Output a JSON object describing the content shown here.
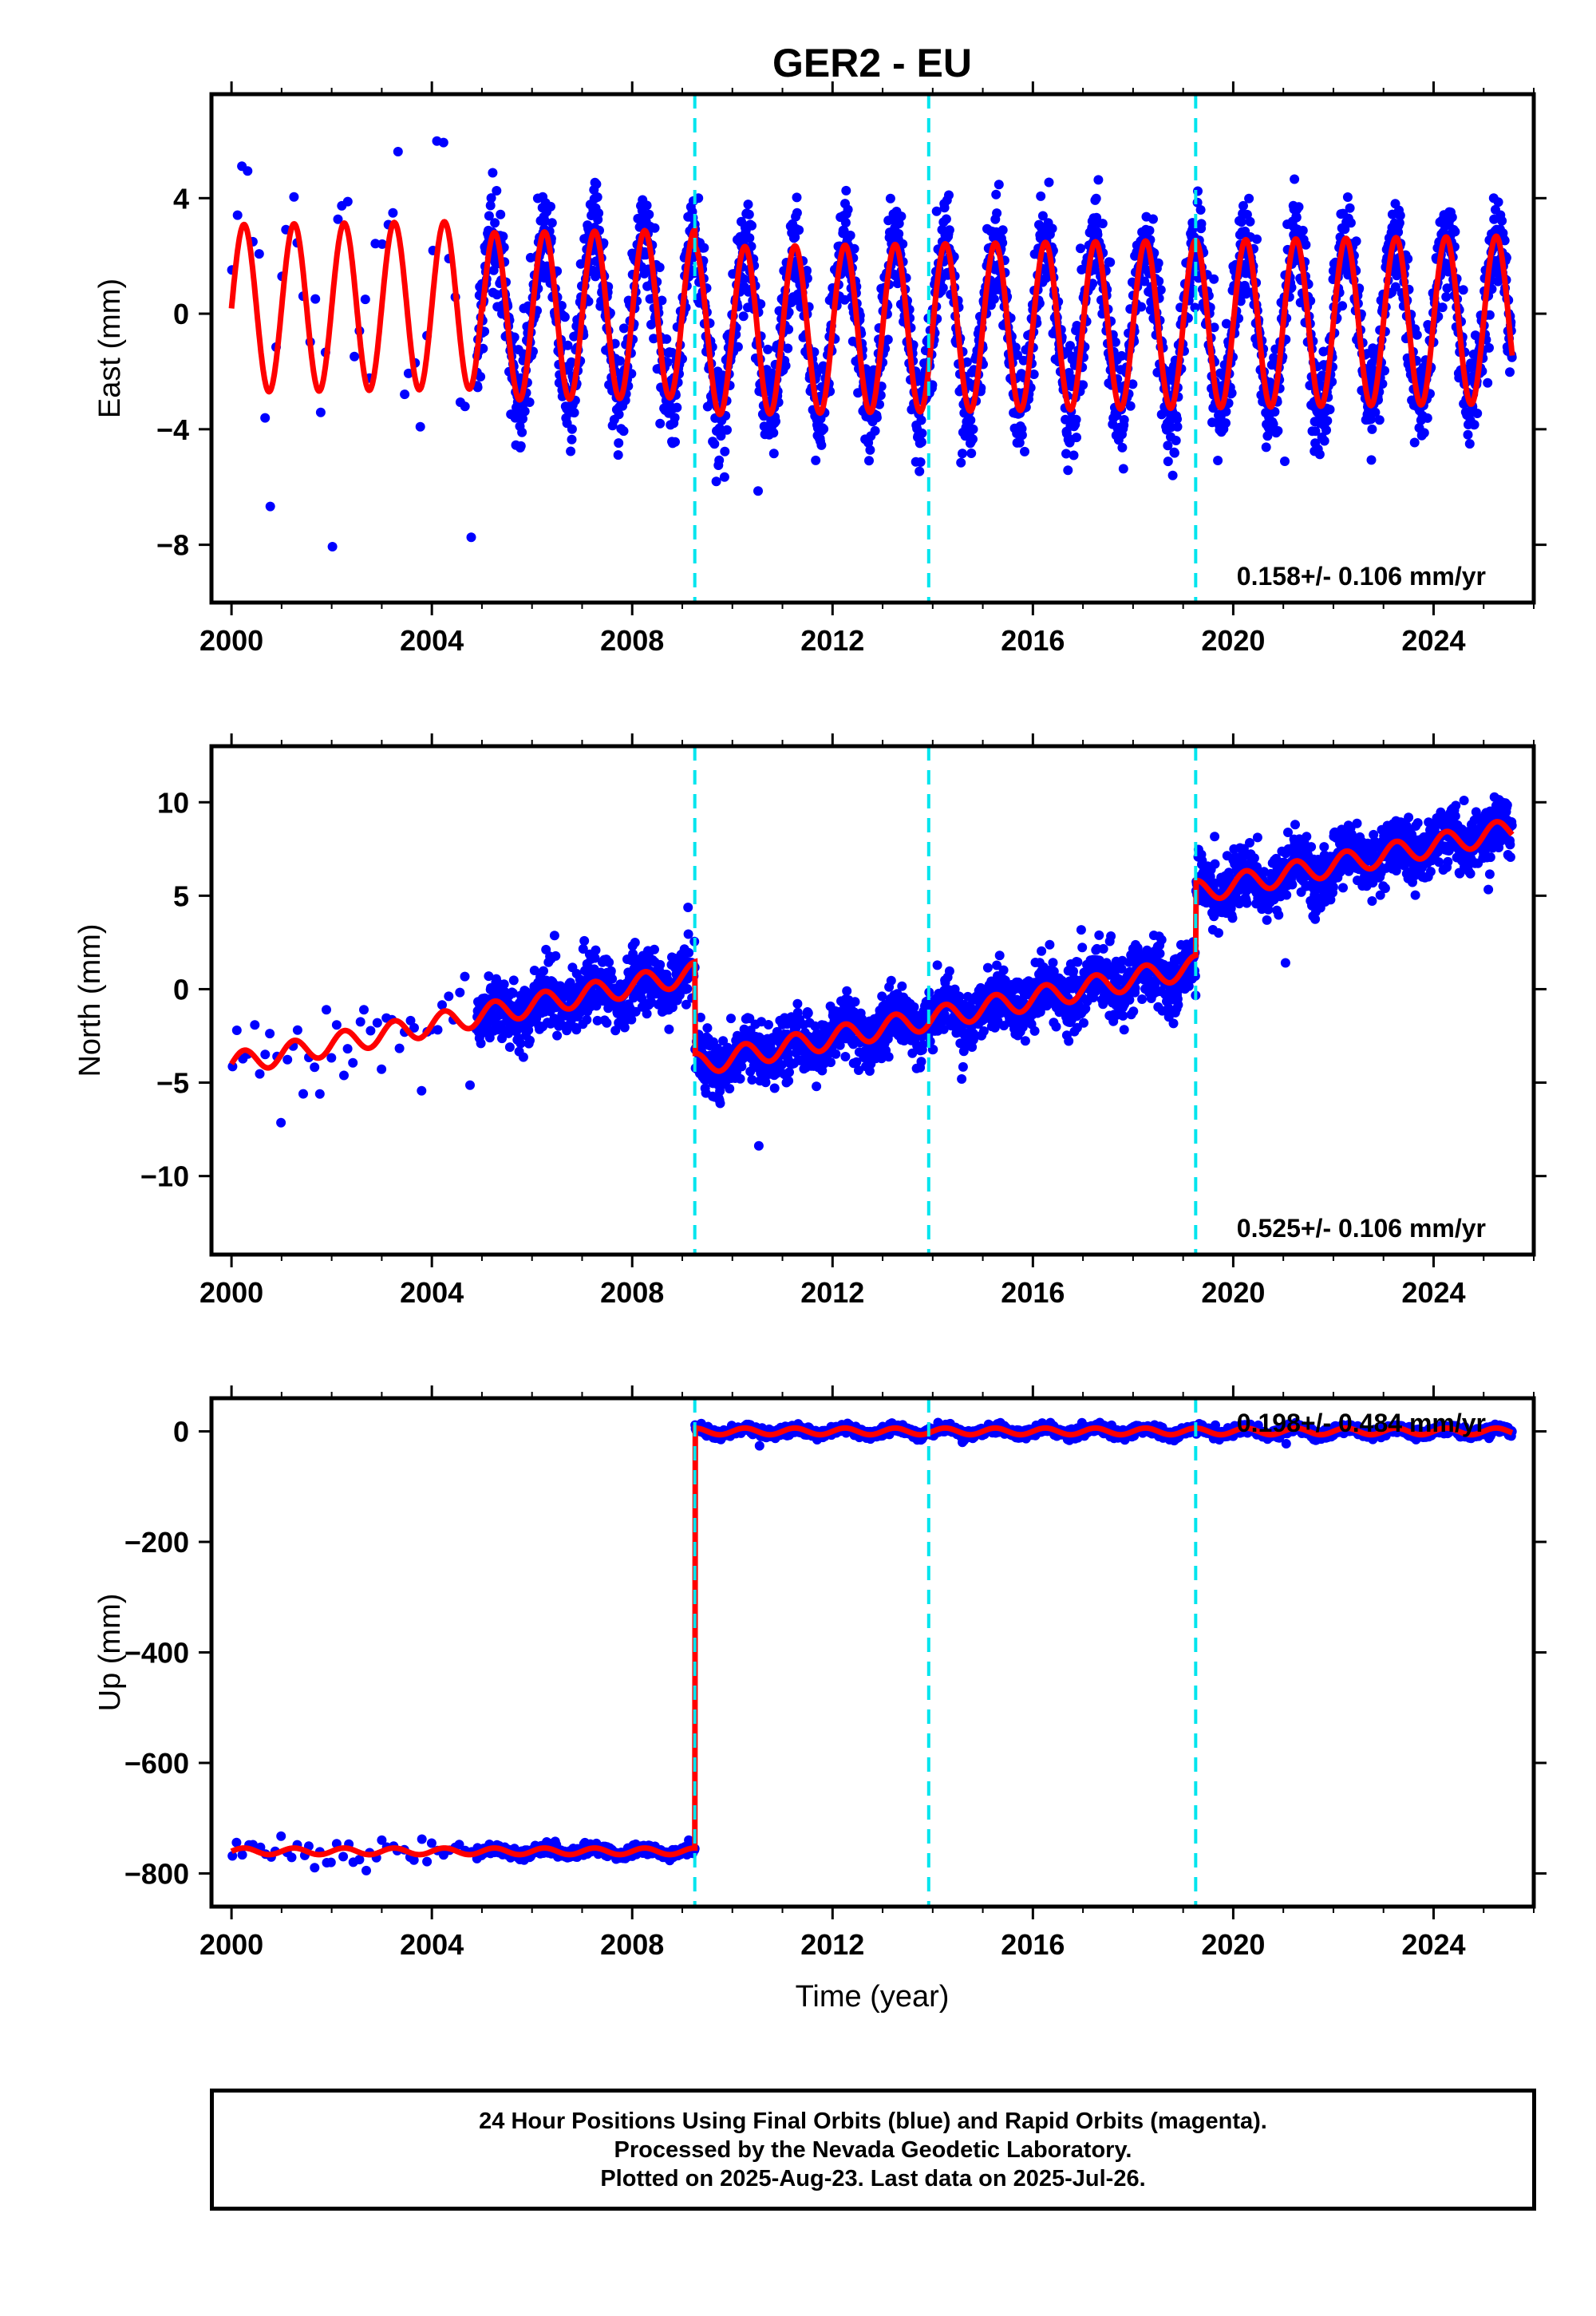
{
  "title": "GER2 - EU",
  "xlabel": "Time (year)",
  "colors": {
    "data": "#0000ff",
    "model": "#ff0000",
    "offset": "#00e5ee",
    "frame": "#000000"
  },
  "footer": {
    "line1": "24 Hour Positions Using Final Orbits (blue) and Rapid Orbits (magenta).",
    "line2": "Processed by the Nevada Geodetic Laboratory.",
    "line3": "Plotted on 2025-Aug-23. Last data on 2025-Jul-26."
  },
  "chart_data": [
    {
      "type": "scatter",
      "component": "east",
      "ylabel": "East (mm)",
      "xlim": [
        1999.6,
        2026.0
      ],
      "ylim": [
        -10.0,
        7.6
      ],
      "xticks": [
        2000,
        2004,
        2008,
        2012,
        2016,
        2020,
        2024
      ],
      "yticks": [
        -8,
        -4,
        0,
        4
      ],
      "offsets": [
        2009.25,
        2013.92,
        2019.25
      ],
      "rate_label": "0.158+/- 0.106 mm/yr",
      "model": {
        "rate": 0.158,
        "level_before_2005": 0.4,
        "level_after_2005": 0.0,
        "jump_2009": -0.6,
        "amplitude": 2.9,
        "phase_peak_month": 4
      },
      "series": [
        {
          "name": "Final Orbits",
          "segments": [
            {
              "x_start": 2000.0,
              "x_end": 2004.9,
              "density": "sparse",
              "scatter_mm": 2.0
            },
            {
              "x_start": 2004.9,
              "x_end": 2025.57,
              "density": "daily",
              "scatter_mm": 1.3
            }
          ]
        }
      ]
    },
    {
      "type": "scatter",
      "component": "north",
      "ylabel": "North (mm)",
      "xlim": [
        1999.6,
        2026.0
      ],
      "ylim": [
        -14.2,
        13.0
      ],
      "xticks": [
        2000,
        2004,
        2008,
        2012,
        2016,
        2020,
        2024
      ],
      "yticks": [
        -10,
        -5,
        0,
        5,
        10
      ],
      "offsets": [
        2009.25,
        2013.92,
        2019.25
      ],
      "rate_label": "0.525+/- 0.106 mm/yr",
      "model": {
        "rate": 0.525,
        "value_2000": -4.0,
        "jump_2009": -4.9,
        "jump_2019": 4.0,
        "amplitude": 0.6
      },
      "series": [
        {
          "name": "Final Orbits",
          "segments": [
            {
              "x_start": 2000.0,
              "x_end": 2004.9,
              "density": "sparse",
              "scatter_mm": 1.5
            },
            {
              "x_start": 2004.9,
              "x_end": 2025.57,
              "density": "daily",
              "scatter_mm": 1.2
            }
          ]
        }
      ]
    },
    {
      "type": "scatter",
      "component": "up",
      "ylabel": "Up (mm)",
      "xlim": [
        1999.6,
        2026.0
      ],
      "ylim": [
        -860,
        60
      ],
      "xticks": [
        2000,
        2004,
        2008,
        2012,
        2016,
        2020,
        2024
      ],
      "yticks": [
        -800,
        -600,
        -400,
        -200,
        0
      ],
      "offsets": [
        2009.25,
        2013.92,
        2019.25
      ],
      "rate_label": "0.198+/- 0.484 mm/yr",
      "model": {
        "level_before_2009": -760,
        "level_after_2009": 0,
        "amplitude": 6
      },
      "series": [
        {
          "name": "Final Orbits",
          "segments": [
            {
              "x_start": 2000.0,
              "x_end": 2004.9,
              "density": "sparse",
              "scatter_mm": 12
            },
            {
              "x_start": 2004.9,
              "x_end": 2025.57,
              "density": "daily",
              "scatter_mm": 6
            }
          ]
        }
      ]
    }
  ]
}
